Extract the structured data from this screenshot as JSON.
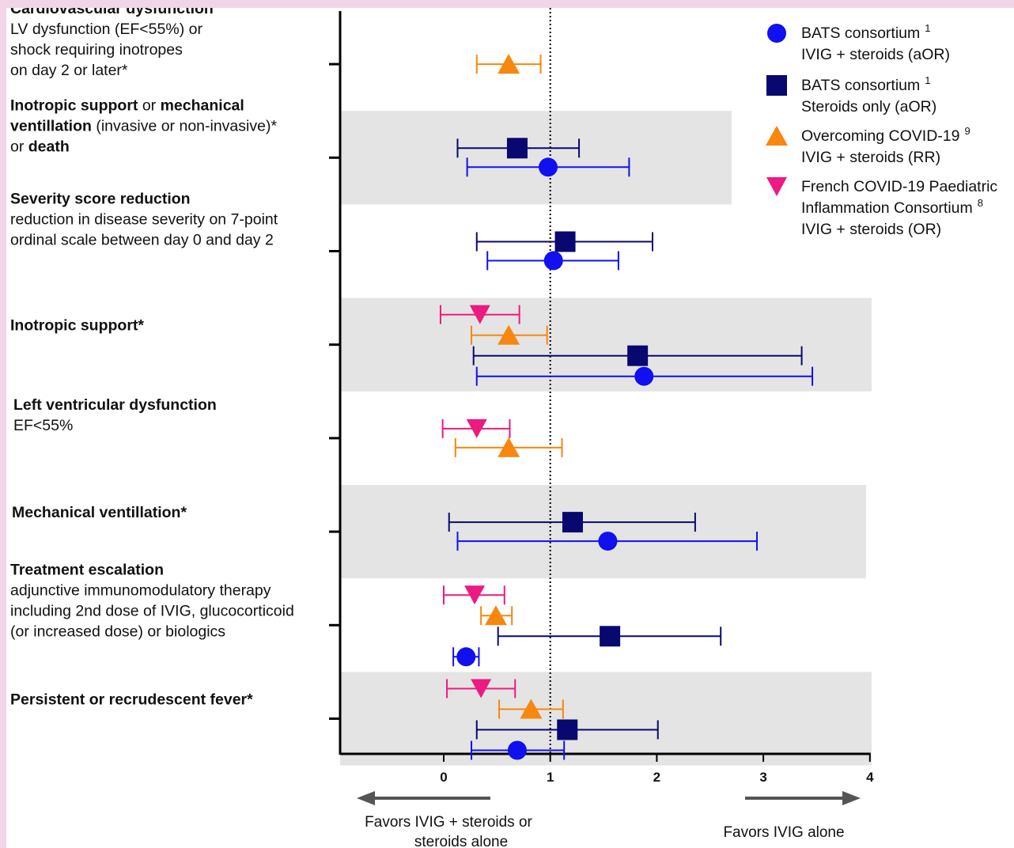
{
  "chart_data": {
    "type": "forest",
    "xlim": [
      -1,
      4
    ],
    "x_ticks": [
      "0",
      "1",
      "2",
      "3",
      "4"
    ],
    "reference_line": 1,
    "series": [
      {
        "key": "bats_ivig",
        "shape": "circle",
        "color": "#1010f0",
        "name": "BATS consortium",
        "sup": "1",
        "name2": "IVIG + steroids (aOR)"
      },
      {
        "key": "bats_steroids",
        "shape": "square",
        "color": "#080870",
        "name": "BATS consortium",
        "sup": "1",
        "name2": "Steroids only (aOR)"
      },
      {
        "key": "overcoming",
        "shape": "triangle",
        "color": "#f7870f",
        "name": "Overcoming COVID-19",
        "sup": "9",
        "name2": "IVIG + steroids (RR)"
      },
      {
        "key": "french",
        "shape": "triangle-down",
        "color": "#ec1a82",
        "name": "French COVID-19 Paediatric",
        "name2": "Inflammation Consortium",
        "sup2": "8",
        "name3": "IVIG + steroids (OR)"
      }
    ],
    "outcomes": [
      {
        "shaded": false,
        "label_lines": [
          [
            {
              "t": "Cardiovascular dysfunction",
              "b": true
            }
          ],
          [
            {
              "t": "LV dysfunction (EF<55%) or",
              "b": false
            }
          ],
          [
            {
              "t": "shock requiring inotropes",
              "b": false
            }
          ],
          [
            {
              "t": "on day 2 or later*",
              "b": false
            }
          ]
        ],
        "estimates": [
          {
            "series": "overcoming",
            "est": 0.61,
            "lo": 0.31,
            "hi": 0.91
          }
        ]
      },
      {
        "shaded": true,
        "label_lines": [
          [
            {
              "t": "Inotropic support",
              "b": true
            },
            {
              "t": " or ",
              "b": false
            },
            {
              "t": "mechanical",
              "b": true
            }
          ],
          [
            {
              "t": "ventillation",
              "b": true
            },
            {
              "t": " (invasive or non-invasive)*",
              "b": false
            }
          ],
          [
            {
              "t": "or ",
              "b": false
            },
            {
              "t": "death",
              "b": true
            }
          ]
        ],
        "estimates": [
          {
            "series": "bats_steroids",
            "est": 0.69,
            "lo": 0.13,
            "hi": 1.27
          },
          {
            "series": "bats_ivig",
            "est": 0.98,
            "lo": 0.22,
            "hi": 1.74
          }
        ]
      },
      {
        "shaded": false,
        "label_lines": [
          [
            {
              "t": "Severity score reduction",
              "b": true
            }
          ],
          [
            {
              "t": "reduction in disease severity on 7-point",
              "b": false
            }
          ],
          [
            {
              "t": "ordinal scale between day 0 and day 2",
              "b": false
            }
          ]
        ],
        "estimates": [
          {
            "series": "bats_steroids",
            "est": 1.14,
            "lo": 0.31,
            "hi": 1.96
          },
          {
            "series": "bats_ivig",
            "est": 1.03,
            "lo": 0.41,
            "hi": 1.64
          }
        ]
      },
      {
        "shaded": true,
        "label_lines": [
          [
            {
              "t": "Inotropic support*",
              "b": true
            }
          ]
        ],
        "estimates": [
          {
            "series": "french",
            "est": 0.34,
            "lo": -0.03,
            "hi": 0.71
          },
          {
            "series": "overcoming",
            "est": 0.61,
            "lo": 0.26,
            "hi": 0.97
          },
          {
            "series": "bats_steroids",
            "est": 1.82,
            "lo": 0.28,
            "hi": 3.36
          },
          {
            "series": "bats_ivig",
            "est": 1.88,
            "lo": 0.31,
            "hi": 3.46
          }
        ]
      },
      {
        "shaded": false,
        "label_lines": [
          [
            {
              "t": "Left ventricular dysfunction",
              "b": true
            }
          ],
          [
            {
              "t": "EF<55%",
              "b": false
            }
          ]
        ],
        "estimates": [
          {
            "series": "french",
            "est": 0.31,
            "lo": -0.01,
            "hi": 0.62
          },
          {
            "series": "overcoming",
            "est": 0.61,
            "lo": 0.11,
            "hi": 1.11
          }
        ]
      },
      {
        "shaded": true,
        "label_lines": [
          [
            {
              "t": "Mechanical ventillation*",
              "b": true
            }
          ]
        ],
        "estimates": [
          {
            "series": "bats_steroids",
            "est": 1.21,
            "lo": 0.05,
            "hi": 2.36
          },
          {
            "series": "bats_ivig",
            "est": 1.54,
            "lo": 0.13,
            "hi": 2.94
          }
        ]
      },
      {
        "shaded": false,
        "label_lines": [
          [
            {
              "t": "Treatment escalation",
              "b": true
            }
          ],
          [
            {
              "t": "adjunctive immunomodulatory therapy",
              "b": false
            }
          ],
          [
            {
              "t": "including 2nd dose of IVIG, glucocorticoid",
              "b": false
            }
          ],
          [
            {
              "t": "(or increased dose) or biologics",
              "b": false
            }
          ]
        ],
        "estimates": [
          {
            "series": "french",
            "est": 0.29,
            "lo": 0.0,
            "hi": 0.57
          },
          {
            "series": "overcoming",
            "est": 0.49,
            "lo": 0.35,
            "hi": 0.64
          },
          {
            "series": "bats_steroids",
            "est": 1.56,
            "lo": 0.51,
            "hi": 2.6
          },
          {
            "series": "bats_ivig",
            "est": 0.21,
            "lo": 0.09,
            "hi": 0.33
          }
        ]
      },
      {
        "shaded": true,
        "label_lines": [
          [
            {
              "t": "Persistent or recrudescent fever*",
              "b": true
            }
          ]
        ],
        "estimates": [
          {
            "series": "french",
            "est": 0.35,
            "lo": 0.03,
            "hi": 0.67
          },
          {
            "series": "overcoming",
            "est": 0.82,
            "lo": 0.52,
            "hi": 1.12
          },
          {
            "series": "bats_steroids",
            "est": 1.16,
            "lo": 0.31,
            "hi": 2.01
          },
          {
            "series": "bats_ivig",
            "est": 0.69,
            "lo": 0.26,
            "hi": 1.13
          }
        ]
      }
    ],
    "direction_left": [
      "Favors IVIG + steroids or",
      "steroids alone"
    ],
    "direction_right": "Favors IVIG alone"
  }
}
